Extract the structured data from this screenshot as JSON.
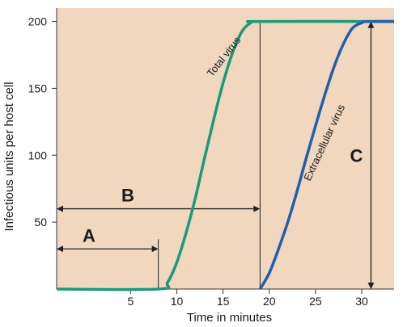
{
  "chart_data": {
    "type": "line",
    "xlabel": "Time in minutes",
    "ylabel": "Infectious units per host cell",
    "xlim": [
      -3,
      33.5
    ],
    "ylim": [
      0,
      210
    ],
    "xticks": [
      5,
      10,
      15,
      20,
      25,
      30
    ],
    "yticks": [
      50,
      100,
      150,
      200
    ],
    "grid": false,
    "background": "#f2d7bf",
    "series": [
      {
        "name": "Total virus",
        "color": "#1a9a7a",
        "x": [
          -3,
          8,
          9,
          10,
          11,
          12,
          13,
          14,
          15,
          16,
          17,
          18,
          19,
          33.5
        ],
        "y": [
          0,
          0,
          5,
          20,
          42,
          68,
          98,
          127,
          154,
          176,
          192,
          199,
          200,
          200
        ]
      },
      {
        "name": "Extracellular virus",
        "color": "#1f5fae",
        "x": [
          19,
          20,
          21,
          22,
          23,
          24,
          25,
          26,
          27,
          28,
          29,
          30,
          30.6,
          33.5
        ],
        "y": [
          0,
          12,
          30,
          50,
          73,
          98,
          122,
          145,
          166,
          183,
          195,
          199,
          200,
          200
        ]
      }
    ],
    "annotations": {
      "A": {
        "label": "A",
        "x_from": -3,
        "x_to": 8,
        "y": 30
      },
      "B": {
        "label": "B",
        "x_from": -3,
        "x_to": 19,
        "y": 60
      },
      "C": {
        "label": "C",
        "x": 31,
        "y_from": 0,
        "y_to": 200
      },
      "vline_end_x": 19
    }
  }
}
